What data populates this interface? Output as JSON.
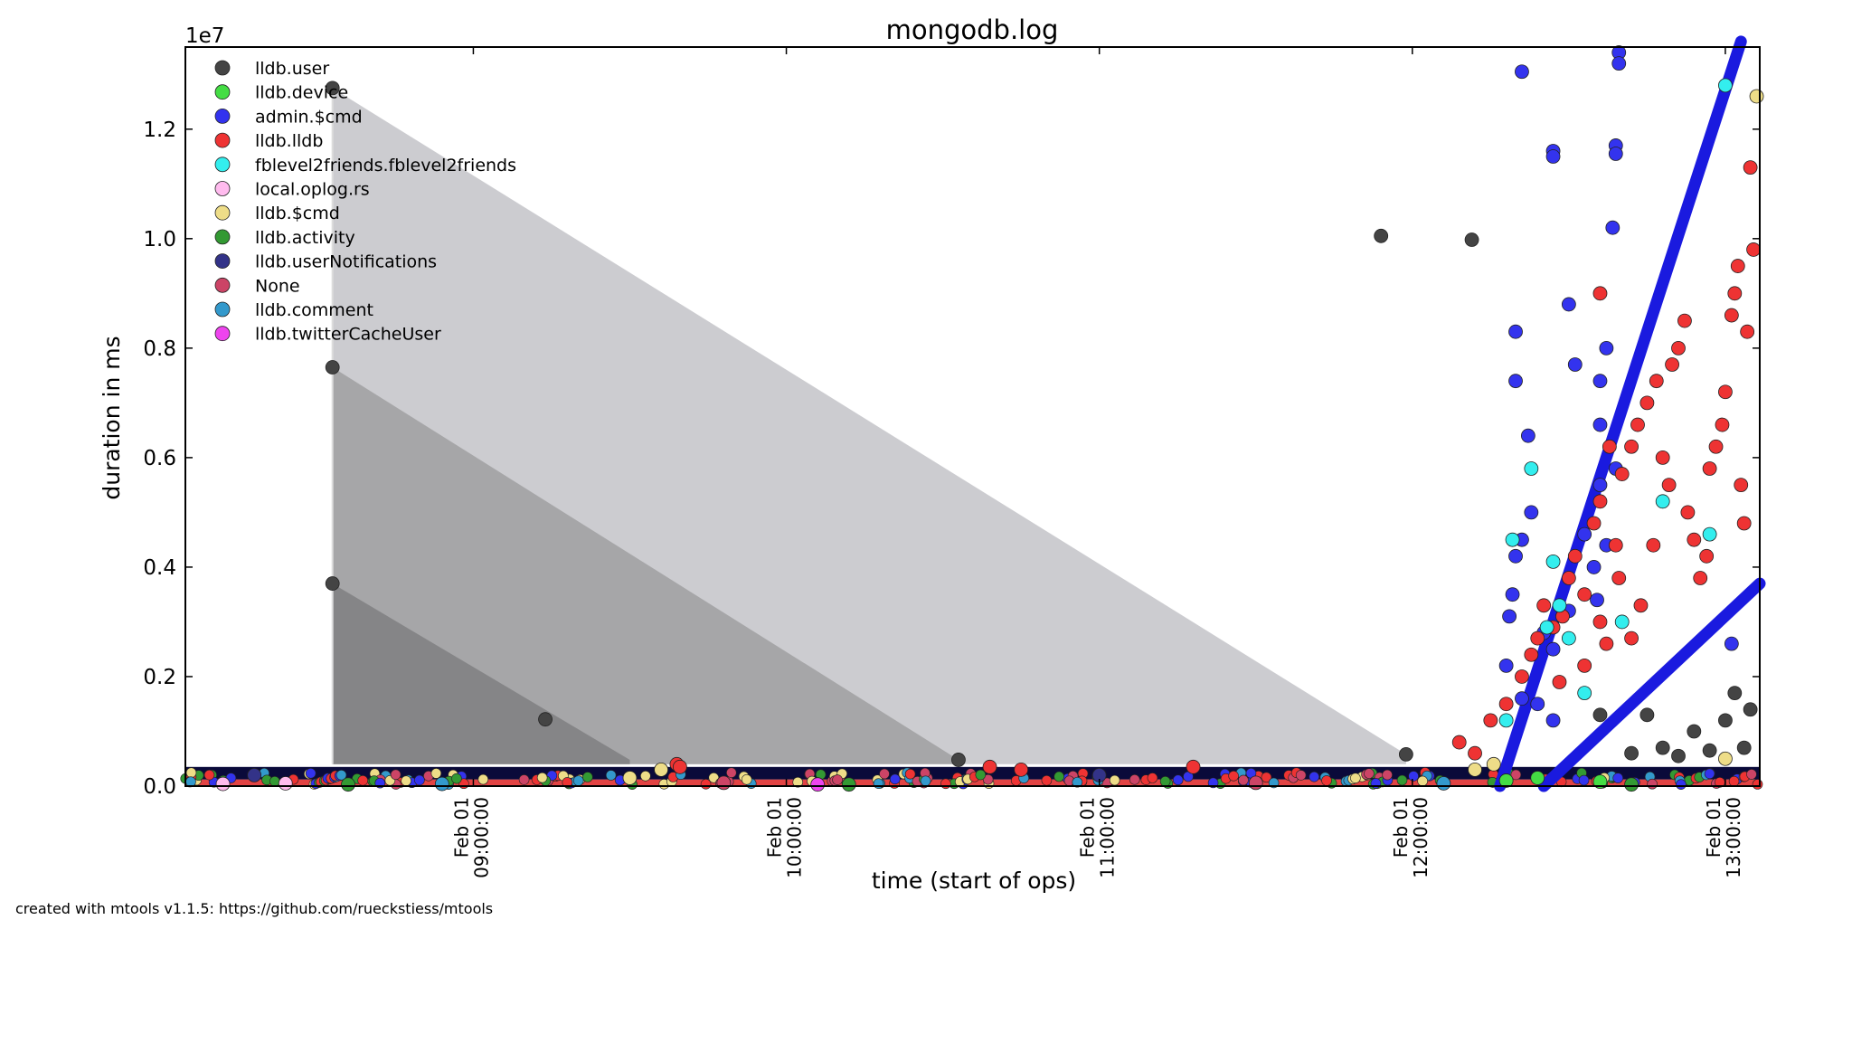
{
  "chart_data": {
    "type": "scatter",
    "title": "mongodb.log",
    "xlabel": "time (start of ops)",
    "ylabel": "duration in ms",
    "y_exponent": "1e7",
    "ylim": [
      0,
      1.35
    ],
    "xlim_hours": [
      8.08,
      13.11
    ],
    "date_label": "Feb 01",
    "x_ticks": [
      {
        "hour": 9,
        "date": "Feb 01",
        "time": "09:00:00"
      },
      {
        "hour": 10,
        "date": "Feb 01",
        "time": "10:00:00"
      },
      {
        "hour": 11,
        "date": "Feb 01",
        "time": "11:00:00"
      },
      {
        "hour": 12,
        "date": "Feb 01",
        "time": "12:00:00"
      },
      {
        "hour": 13,
        "date": "Feb 01",
        "time": "13:00:00"
      }
    ],
    "y_ticks": [
      {
        "v": 0.0,
        "label": "0.0"
      },
      {
        "v": 0.2,
        "label": "0.2"
      },
      {
        "v": 0.4,
        "label": "0.4"
      },
      {
        "v": 0.6,
        "label": "0.6"
      },
      {
        "v": 0.8,
        "label": "0.8"
      },
      {
        "v": 1.0,
        "label": "1.0"
      },
      {
        "v": 1.2,
        "label": "1.2"
      }
    ],
    "legend_position": "top-left",
    "series": [
      {
        "name": "lldb.user",
        "color": "#444444",
        "points": [
          [
            8.55,
            1.275
          ],
          [
            8.55,
            0.765
          ],
          [
            8.55,
            0.37
          ],
          [
            9.23,
            0.122
          ],
          [
            10.55,
            0.048
          ],
          [
            11.9,
            1.005
          ],
          [
            12.19,
            0.998
          ],
          [
            11.98,
            0.058
          ],
          [
            12.6,
            0.13
          ],
          [
            12.75,
            0.13
          ],
          [
            12.9,
            0.1
          ],
          [
            13.0,
            0.12
          ],
          [
            13.03,
            0.17
          ],
          [
            13.08,
            0.14
          ],
          [
            12.8,
            0.07
          ],
          [
            12.95,
            0.065
          ],
          [
            13.06,
            0.07
          ],
          [
            12.7,
            0.06
          ],
          [
            12.85,
            0.055
          ]
        ]
      },
      {
        "name": "lldb.device",
        "color": "#44dd44",
        "points": [
          [
            12.3,
            0.01
          ],
          [
            12.4,
            0.015
          ],
          [
            12.6,
            0.008
          ]
        ]
      },
      {
        "name": "admin.$cmd",
        "color": "#3333ee",
        "points": [
          [
            12.35,
            1.305
          ],
          [
            12.45,
            1.16
          ],
          [
            12.45,
            1.15
          ],
          [
            12.65,
            1.17
          ],
          [
            12.65,
            1.155
          ],
          [
            12.66,
            1.34
          ],
          [
            12.66,
            1.32
          ],
          [
            12.64,
            1.02
          ],
          [
            12.5,
            0.88
          ],
          [
            12.52,
            0.77
          ],
          [
            12.33,
            0.83
          ],
          [
            12.33,
            0.74
          ],
          [
            12.37,
            0.64
          ],
          [
            12.62,
            0.8
          ],
          [
            12.6,
            0.74
          ],
          [
            12.6,
            0.66
          ],
          [
            12.38,
            0.5
          ],
          [
            12.35,
            0.45
          ],
          [
            12.33,
            0.42
          ],
          [
            12.32,
            0.35
          ],
          [
            12.31,
            0.31
          ],
          [
            12.3,
            0.22
          ],
          [
            12.35,
            0.16
          ],
          [
            12.42,
            0.28
          ],
          [
            12.45,
            0.25
          ],
          [
            12.5,
            0.32
          ],
          [
            12.55,
            0.46
          ],
          [
            12.58,
            0.4
          ],
          [
            12.59,
            0.34
          ],
          [
            12.6,
            0.55
          ],
          [
            12.62,
            0.44
          ],
          [
            12.65,
            0.58
          ],
          [
            12.45,
            0.12
          ],
          [
            12.4,
            0.15
          ],
          [
            13.02,
            0.26
          ]
        ]
      },
      {
        "name": "lldb.lldb",
        "color": "#ee3333",
        "points": [
          [
            9.65,
            0.04
          ],
          [
            9.66,
            0.035
          ],
          [
            10.65,
            0.035
          ],
          [
            10.75,
            0.03
          ],
          [
            11.3,
            0.035
          ],
          [
            12.15,
            0.08
          ],
          [
            12.2,
            0.06
          ],
          [
            12.25,
            0.12
          ],
          [
            12.3,
            0.15
          ],
          [
            12.35,
            0.2
          ],
          [
            12.38,
            0.24
          ],
          [
            12.4,
            0.27
          ],
          [
            12.42,
            0.33
          ],
          [
            12.45,
            0.29
          ],
          [
            12.48,
            0.31
          ],
          [
            12.5,
            0.38
          ],
          [
            12.52,
            0.42
          ],
          [
            12.55,
            0.35
          ],
          [
            12.58,
            0.48
          ],
          [
            12.6,
            0.52
          ],
          [
            12.6,
            0.3
          ],
          [
            12.62,
            0.26
          ],
          [
            12.65,
            0.44
          ],
          [
            12.67,
            0.57
          ],
          [
            12.7,
            0.62
          ],
          [
            12.72,
            0.66
          ],
          [
            12.75,
            0.7
          ],
          [
            12.78,
            0.74
          ],
          [
            12.8,
            0.6
          ],
          [
            12.82,
            0.55
          ],
          [
            12.83,
            0.77
          ],
          [
            12.85,
            0.8
          ],
          [
            12.87,
            0.85
          ],
          [
            12.88,
            0.5
          ],
          [
            12.9,
            0.45
          ],
          [
            12.92,
            0.38
          ],
          [
            12.94,
            0.42
          ],
          [
            12.95,
            0.58
          ],
          [
            12.97,
            0.62
          ],
          [
            12.99,
            0.66
          ],
          [
            13.0,
            0.72
          ],
          [
            13.02,
            0.86
          ],
          [
            13.03,
            0.9
          ],
          [
            13.04,
            0.95
          ],
          [
            13.05,
            0.55
          ],
          [
            13.06,
            0.48
          ],
          [
            13.07,
            0.83
          ],
          [
            13.08,
            1.13
          ],
          [
            13.09,
            0.98
          ],
          [
            12.6,
            0.9
          ],
          [
            12.73,
            0.33
          ],
          [
            12.77,
            0.44
          ],
          [
            12.63,
            0.62
          ],
          [
            12.66,
            0.38
          ],
          [
            12.7,
            0.27
          ],
          [
            12.55,
            0.22
          ],
          [
            12.47,
            0.19
          ]
        ]
      },
      {
        "name": "fblevel2friends.fblevel2friends",
        "color": "#33eeee",
        "points": [
          [
            12.32,
            0.45
          ],
          [
            12.45,
            0.41
          ],
          [
            12.47,
            0.33
          ],
          [
            12.43,
            0.29
          ],
          [
            12.3,
            0.12
          ],
          [
            12.5,
            0.27
          ],
          [
            12.55,
            0.17
          ],
          [
            12.67,
            0.3
          ],
          [
            12.95,
            0.46
          ],
          [
            12.8,
            0.52
          ],
          [
            13.0,
            1.28
          ],
          [
            12.38,
            0.58
          ]
        ]
      },
      {
        "name": "local.oplog.rs",
        "color": "#ffbbee",
        "points": [
          [
            8.2,
            0.004
          ],
          [
            8.4,
            0.005
          ]
        ]
      },
      {
        "name": "lldb.$cmd",
        "color": "#eedd88",
        "points": [
          [
            9.6,
            0.03
          ],
          [
            9.5,
            0.015
          ],
          [
            12.2,
            0.03
          ],
          [
            12.26,
            0.04
          ],
          [
            13.0,
            0.05
          ],
          [
            13.1,
            1.26
          ]
        ]
      },
      {
        "name": "lldb.activity",
        "color": "#339933",
        "points": [
          [
            8.6,
            0.003
          ],
          [
            10.2,
            0.003
          ],
          [
            12.7,
            0.003
          ]
        ]
      },
      {
        "name": "lldb.userNotifications",
        "color": "#333388",
        "points": [
          [
            8.3,
            0.02
          ],
          [
            11.0,
            0.02
          ]
        ]
      },
      {
        "name": "None",
        "color": "#cc4466",
        "points": [
          [
            9.8,
            0.006
          ],
          [
            11.5,
            0.006
          ]
        ]
      },
      {
        "name": "lldb.comment",
        "color": "#3399cc",
        "points": [
          [
            8.9,
            0.004
          ],
          [
            12.1,
            0.005
          ]
        ]
      },
      {
        "name": "lldb.twitterCacheUser",
        "color": "#ee44ee",
        "points": [
          [
            10.1,
            0.003
          ]
        ]
      }
    ],
    "annotations_bands": [
      {
        "x0": 8.55,
        "y0": 1.275,
        "x1": 11.98,
        "y1": 0.058,
        "fill": "#ccccd0"
      },
      {
        "x0": 8.55,
        "y0": 0.765,
        "x1": 10.55,
        "y1": 0.048,
        "fill": "#a6a6a8"
      },
      {
        "x0": 8.55,
        "y0": 0.37,
        "x1": 9.5,
        "y1": 0.048,
        "fill": "#858587"
      }
    ],
    "trend_lines": [
      {
        "name": "admin.$cmd",
        "color": "#1a1adf",
        "from": [
          12.28,
          0.0
        ],
        "to": [
          13.05,
          1.36
        ]
      },
      {
        "name": "admin.$cmd",
        "color": "#1a1adf",
        "from": [
          12.42,
          0.0
        ],
        "to": [
          13.11,
          0.37
        ]
      }
    ]
  },
  "footer": "created with mtools v1.1.5: https://github.com/rueckstiess/mtools"
}
